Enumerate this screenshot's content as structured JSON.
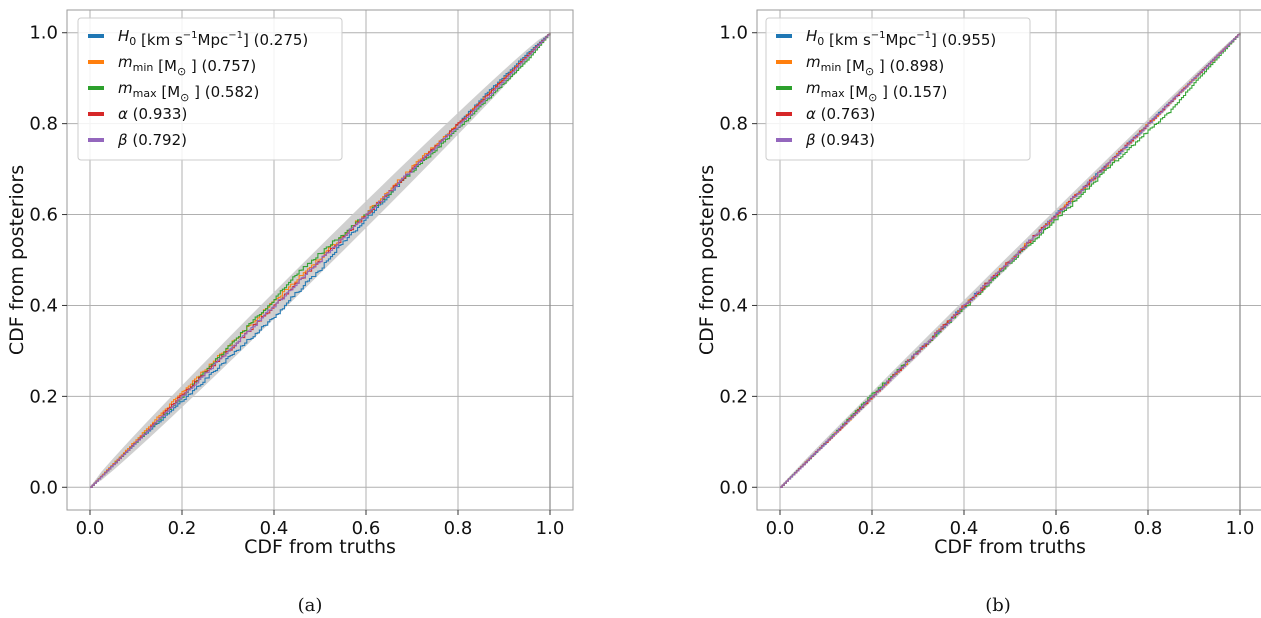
{
  "chart_data": [
    {
      "type": "line",
      "panel_label": "(a)",
      "xlabel": "CDF from truths",
      "ylabel": "CDF from posteriors",
      "xlim": [
        -0.05,
        1.05
      ],
      "ylim": [
        -0.05,
        1.05
      ],
      "xticks": [
        "0.0",
        "0.2",
        "0.4",
        "0.6",
        "0.8",
        "1.0"
      ],
      "yticks": [
        "0.0",
        "0.2",
        "0.4",
        "0.6",
        "0.8",
        "1.0"
      ],
      "grid": true,
      "legend_position": "top-left",
      "confidence_band": {
        "color": "#c8c8c8",
        "half_width_mid": 0.03
      },
      "series": [
        {
          "key": "H0",
          "symbol": "H",
          "sub": "0",
          "units": "km_s_mpc",
          "p_value": "(0.275)",
          "color": "#1f77b4",
          "x": [
            0,
            0.1,
            0.2,
            0.3,
            0.35,
            0.4,
            0.45,
            0.5,
            0.55,
            0.6,
            0.7,
            0.8,
            0.85,
            0.9,
            0.95,
            1.0
          ],
          "y": [
            0,
            0.1,
            0.19,
            0.285,
            0.33,
            0.375,
            0.43,
            0.48,
            0.54,
            0.59,
            0.7,
            0.8,
            0.855,
            0.905,
            0.955,
            1.0
          ]
        },
        {
          "key": "mmin",
          "symbol": "m",
          "sub": "min",
          "units": "msun",
          "p_value": "(0.757)",
          "color": "#ff7f0e",
          "x": [
            0,
            0.1,
            0.2,
            0.3,
            0.4,
            0.5,
            0.6,
            0.7,
            0.8,
            0.9,
            1.0
          ],
          "y": [
            0,
            0.105,
            0.21,
            0.31,
            0.41,
            0.505,
            0.605,
            0.705,
            0.8,
            0.9,
            1.0
          ]
        },
        {
          "key": "mmax",
          "symbol": "m",
          "sub": "max",
          "units": "msun",
          "p_value": "(0.582)",
          "color": "#2ca02c",
          "x": [
            0,
            0.1,
            0.2,
            0.3,
            0.4,
            0.45,
            0.5,
            0.6,
            0.7,
            0.8,
            0.9,
            0.95,
            1.0
          ],
          "y": [
            0,
            0.1,
            0.2,
            0.31,
            0.415,
            0.47,
            0.515,
            0.6,
            0.695,
            0.79,
            0.89,
            0.94,
            1.0
          ]
        },
        {
          "key": "alpha",
          "symbol": "α",
          "sub": "",
          "units": "",
          "p_value": "(0.933)",
          "color": "#d62728",
          "x": [
            0,
            0.1,
            0.2,
            0.3,
            0.4,
            0.5,
            0.6,
            0.7,
            0.8,
            0.9,
            1.0
          ],
          "y": [
            0,
            0.1,
            0.205,
            0.3,
            0.4,
            0.5,
            0.6,
            0.7,
            0.8,
            0.9,
            1.0
          ]
        },
        {
          "key": "beta",
          "symbol": "β",
          "sub": "",
          "units": "",
          "p_value": "(0.792)",
          "color": "#9467bd",
          "x": [
            0,
            0.1,
            0.2,
            0.3,
            0.4,
            0.5,
            0.6,
            0.7,
            0.8,
            0.9,
            1.0
          ],
          "y": [
            0,
            0.1,
            0.2,
            0.3,
            0.4,
            0.5,
            0.6,
            0.7,
            0.795,
            0.895,
            1.0
          ]
        }
      ]
    },
    {
      "type": "line",
      "panel_label": "(b)",
      "xlabel": "CDF from truths",
      "ylabel": "CDF from posteriors",
      "xlim": [
        -0.05,
        1.05
      ],
      "ylim": [
        -0.05,
        1.05
      ],
      "xticks": [
        "0.0",
        "0.2",
        "0.4",
        "0.6",
        "0.8",
        "1.0"
      ],
      "yticks": [
        "0.0",
        "0.2",
        "0.4",
        "0.6",
        "0.8",
        "1.0"
      ],
      "grid": true,
      "legend_position": "top-left",
      "confidence_band": {
        "color": "#c8c8c8",
        "half_width_mid": 0.012
      },
      "series": [
        {
          "key": "H0",
          "symbol": "H",
          "sub": "0",
          "units": "km_s_mpc",
          "p_value": "(0.955)",
          "color": "#1f77b4",
          "x": [
            0,
            0.1,
            0.2,
            0.3,
            0.4,
            0.5,
            0.6,
            0.7,
            0.8,
            0.9,
            1.0
          ],
          "y": [
            0,
            0.1,
            0.2,
            0.3,
            0.4,
            0.5,
            0.6,
            0.7,
            0.8,
            0.9,
            1.0
          ]
        },
        {
          "key": "mmin",
          "symbol": "m",
          "sub": "min",
          "units": "msun",
          "p_value": "(0.898)",
          "color": "#ff7f0e",
          "x": [
            0,
            0.1,
            0.2,
            0.3,
            0.4,
            0.5,
            0.6,
            0.7,
            0.8,
            0.9,
            1.0
          ],
          "y": [
            0,
            0.1,
            0.2,
            0.3,
            0.4,
            0.5,
            0.6,
            0.7,
            0.8,
            0.9,
            1.0
          ]
        },
        {
          "key": "mmax",
          "symbol": "m",
          "sub": "max",
          "units": "msun",
          "p_value": "(0.157)",
          "color": "#2ca02c",
          "x": [
            0,
            0.1,
            0.2,
            0.3,
            0.4,
            0.5,
            0.6,
            0.7,
            0.8,
            0.85,
            0.9,
            1.0
          ],
          "y": [
            0,
            0.1,
            0.205,
            0.3,
            0.395,
            0.495,
            0.59,
            0.69,
            0.785,
            0.83,
            0.89,
            1.0
          ]
        },
        {
          "key": "alpha",
          "symbol": "α",
          "sub": "",
          "units": "",
          "p_value": "(0.763)",
          "color": "#d62728",
          "x": [
            0,
            0.1,
            0.2,
            0.3,
            0.4,
            0.5,
            0.6,
            0.7,
            0.8,
            0.9,
            1.0
          ],
          "y": [
            0,
            0.1,
            0.2,
            0.3,
            0.4,
            0.5,
            0.6,
            0.7,
            0.8,
            0.9,
            1.0
          ]
        },
        {
          "key": "beta",
          "symbol": "β",
          "sub": "",
          "units": "",
          "p_value": "(0.943)",
          "color": "#9467bd",
          "x": [
            0,
            0.1,
            0.2,
            0.3,
            0.4,
            0.5,
            0.6,
            0.7,
            0.8,
            0.9,
            1.0
          ],
          "y": [
            0,
            0.1,
            0.2,
            0.3,
            0.4,
            0.5,
            0.6,
            0.7,
            0.8,
            0.9,
            1.0
          ]
        }
      ]
    }
  ]
}
